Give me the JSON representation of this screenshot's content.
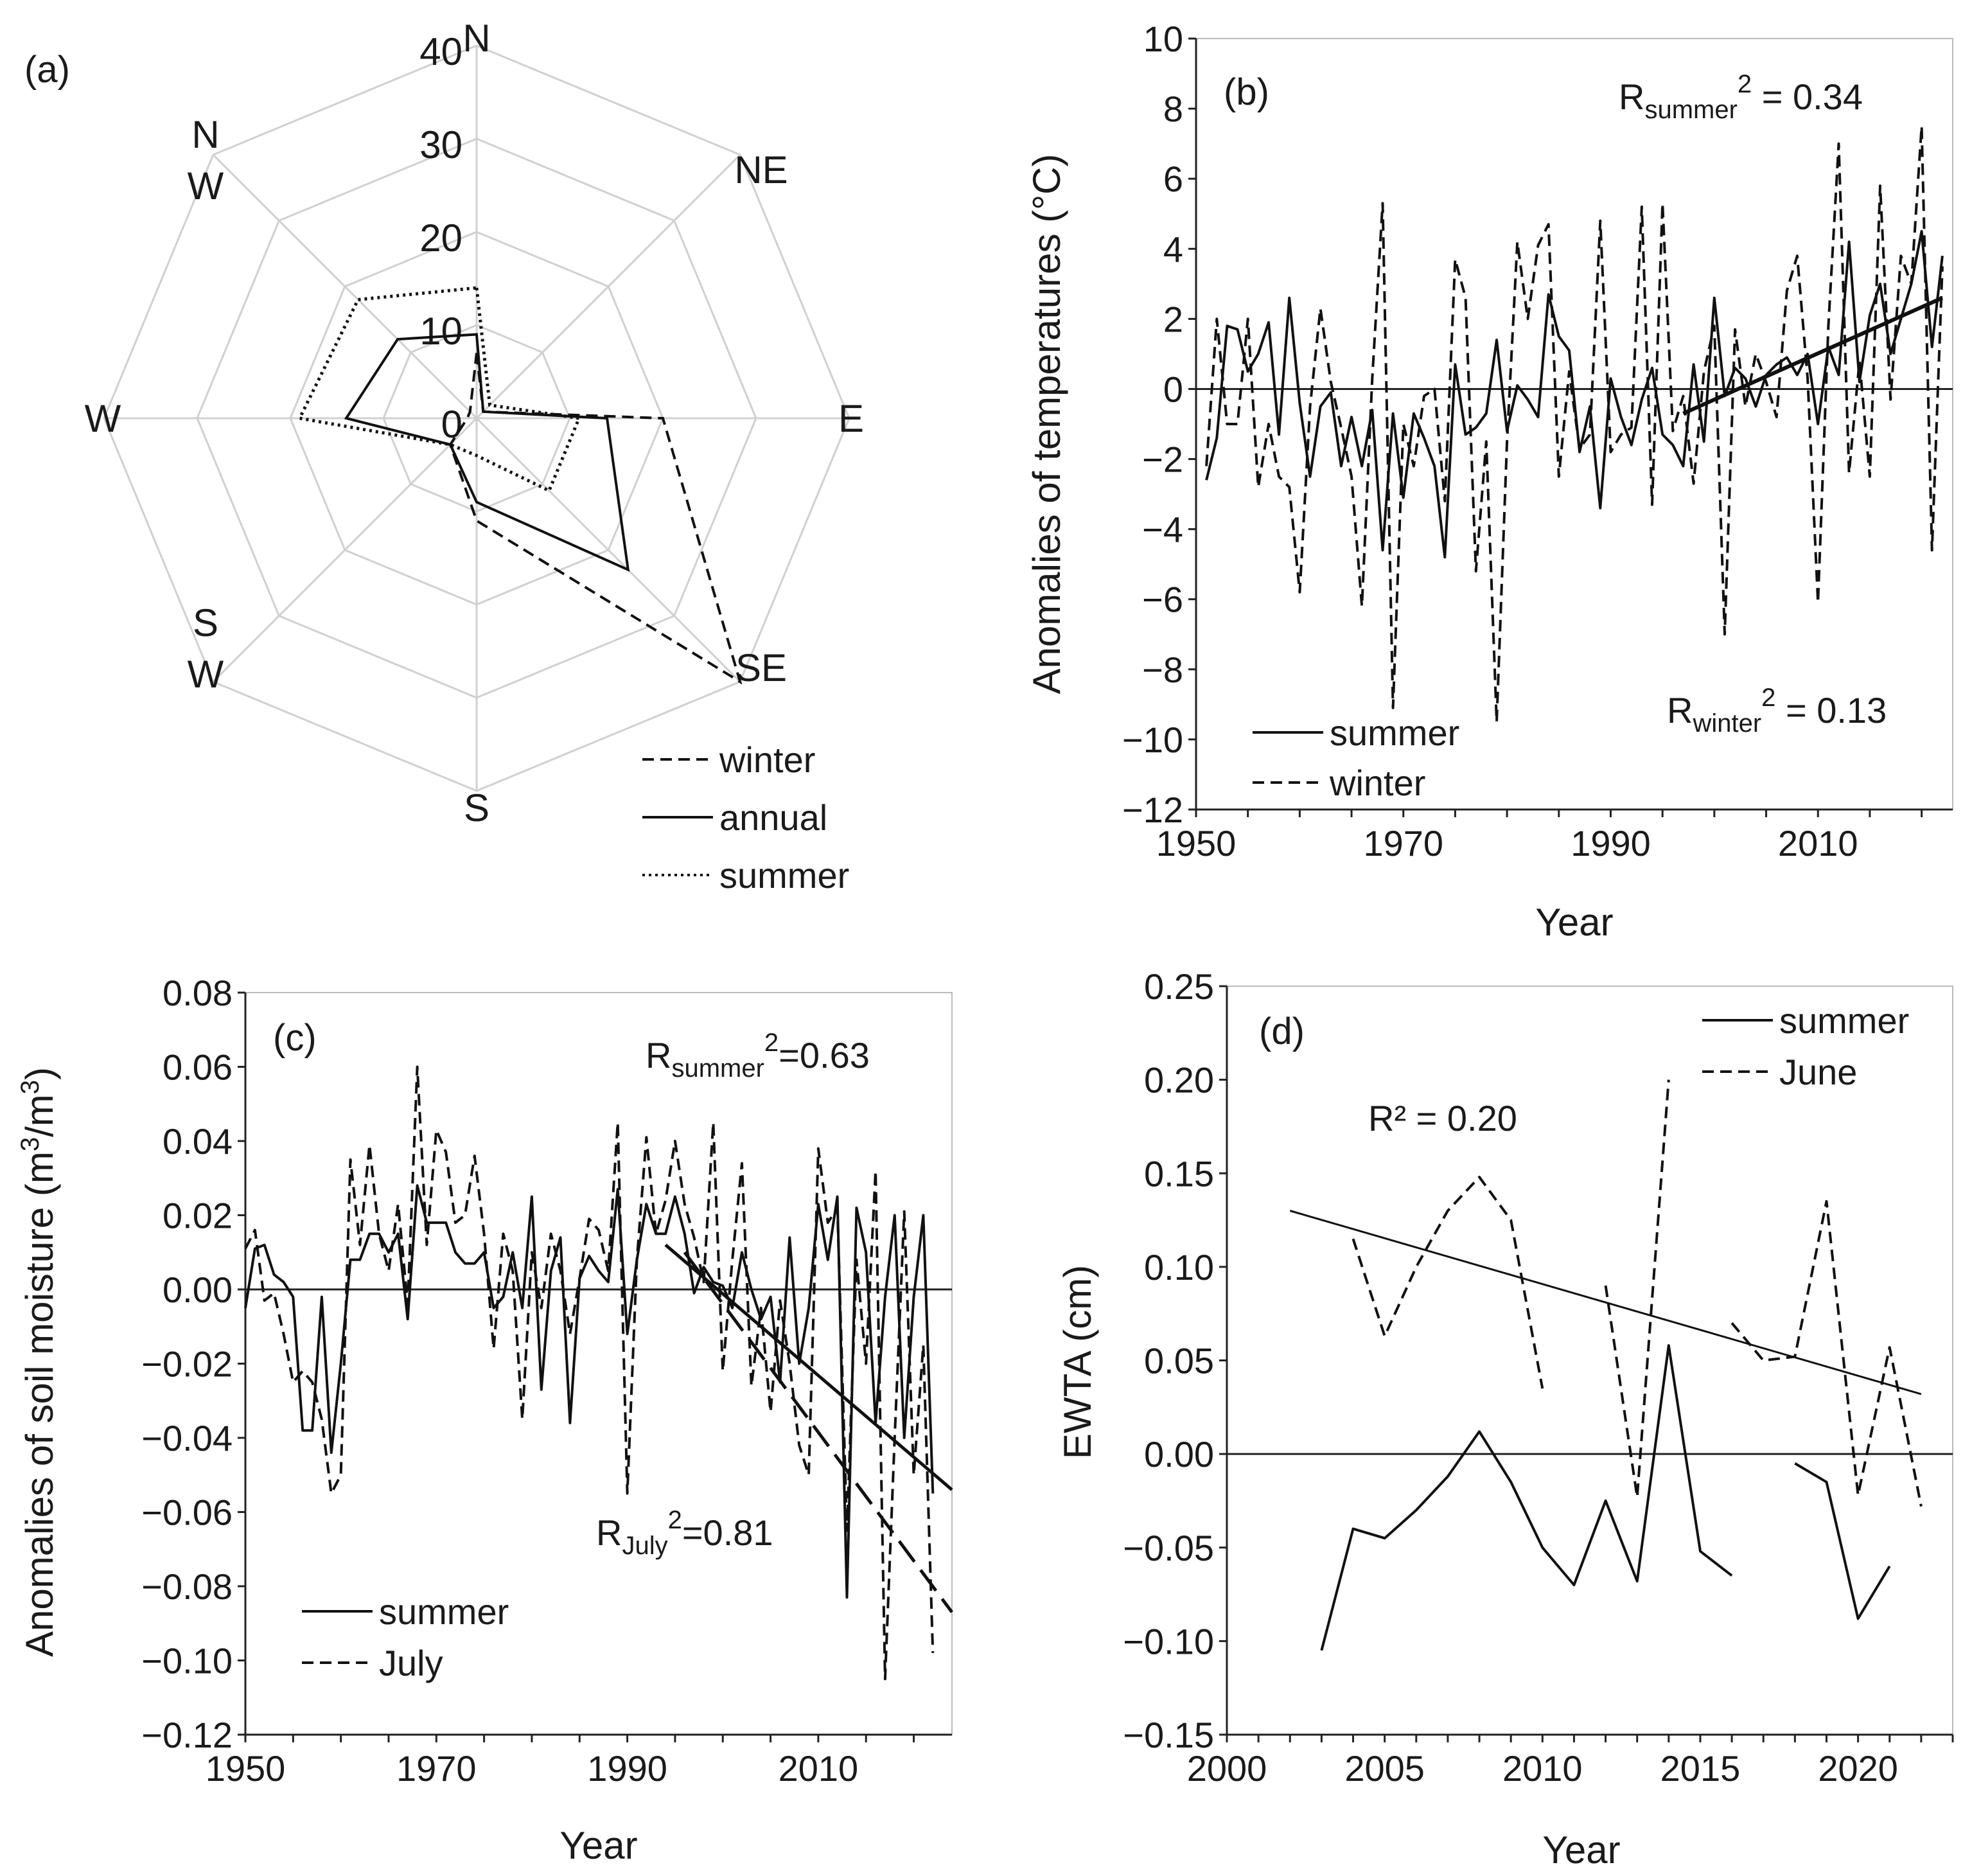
{
  "chart_data": [
    {
      "id": "a",
      "type": "radar",
      "panel_label": "(a)",
      "directions": [
        "N",
        "NE",
        "E",
        "SE",
        "S",
        "SW",
        "W",
        "NW"
      ],
      "direction_labels": [
        "N",
        "NE",
        "E",
        "SE",
        "S",
        "S\nW",
        "W",
        "N\nW"
      ],
      "radial_ticks": [
        "0",
        "10",
        "20",
        "30",
        "40"
      ],
      "rmax": 40,
      "series": [
        {
          "name": "winter",
          "style": "dashed",
          "values": [
            7,
            1,
            20,
            40,
            11,
            4,
            1,
            1
          ]
        },
        {
          "name": "annual",
          "style": "solid",
          "values": [
            9,
            1,
            14,
            23,
            9,
            4,
            14,
            12
          ]
        },
        {
          "name": "summer",
          "style": "dotted",
          "values": [
            14,
            2,
            11,
            11,
            4,
            4,
            19,
            18
          ]
        }
      ],
      "legend": [
        "winter",
        "annual",
        "summer"
      ]
    },
    {
      "id": "b",
      "type": "line",
      "panel_label": "(b)",
      "xlabel": "Year",
      "ylabel": "Anomalies of temperatures (°C)",
      "xlim": [
        1950,
        2023
      ],
      "ylim": [
        -12,
        10
      ],
      "xticks": [
        "1950",
        "1970",
        "1990",
        "2010"
      ],
      "yticks": [
        "−12",
        "−10",
        "−8",
        "−6",
        "−4",
        "−2",
        "0",
        "2",
        "4",
        "6",
        "8",
        "10"
      ],
      "annotations": {
        "r_summer_base": "R",
        "r_summer_sub": "summer",
        "r_summer_sup": "2",
        "r_summer_val": " = 0.34",
        "r_winter_base": "R",
        "r_winter_sub": "winter",
        "r_winter_sup": "2",
        "r_winter_val": " = 0.13"
      },
      "x": [
        1951,
        1952,
        1953,
        1954,
        1955,
        1956,
        1957,
        1958,
        1959,
        1960,
        1961,
        1962,
        1963,
        1964,
        1965,
        1966,
        1967,
        1968,
        1969,
        1970,
        1971,
        1972,
        1973,
        1974,
        1975,
        1976,
        1977,
        1978,
        1979,
        1980,
        1981,
        1982,
        1983,
        1984,
        1985,
        1986,
        1987,
        1988,
        1989,
        1990,
        1991,
        1992,
        1993,
        1994,
        1995,
        1996,
        1997,
        1998,
        1999,
        2000,
        2001,
        2002,
        2003,
        2004,
        2005,
        2006,
        2007,
        2008,
        2009,
        2010,
        2011,
        2012,
        2013,
        2014,
        2015,
        2016,
        2017,
        2018,
        2019,
        2020,
        2021,
        2022
      ],
      "series": [
        {
          "name": "summer",
          "style": "solid",
          "values": [
            -2.6,
            -1.4,
            1.8,
            1.7,
            0.5,
            1.0,
            1.9,
            -1.3,
            2.6,
            -0.4,
            -2.5,
            -0.5,
            -0.1,
            -2.2,
            -0.8,
            -2.2,
            -0.6,
            -4.6,
            -0.7,
            -3.1,
            -0.7,
            -1.4,
            -2.2,
            -4.8,
            0.7,
            -1.3,
            -1.1,
            -0.7,
            1.4,
            -1.2,
            0.1,
            -0.3,
            -0.8,
            2.7,
            1.5,
            1.1,
            -1.8,
            -0.5,
            -3.4,
            0.3,
            -0.8,
            -1.6,
            -0.3,
            0.6,
            -1.3,
            -1.6,
            -2.2,
            0.7,
            -1.5,
            2.6,
            -0.2,
            0.6,
            0.3,
            -0.5,
            0.4,
            0.7,
            0.9,
            0.4,
            1.0,
            -1.0,
            1.2,
            0.4,
            4.2,
            0.2,
            2.1,
            3.0,
            1.0,
            2.0,
            3.0,
            4.5,
            1.2,
            3.8
          ]
        },
        {
          "name": "winter",
          "style": "dashed",
          "values": [
            -2.2,
            2.0,
            -1.0,
            -1.0,
            2.0,
            -2.8,
            -1.0,
            -2.5,
            -2.8,
            -5.8,
            -0.5,
            2.3,
            0.2,
            -1.1,
            -2.5,
            -6.2,
            0.3,
            5.3,
            -9.1,
            -1.0,
            -2.2,
            -0.2,
            0.0,
            -3.2,
            3.7,
            2.6,
            -5.2,
            -1.5,
            -9.5,
            -1.5,
            4.2,
            2.0,
            4.1,
            4.7,
            -2.5,
            0.5,
            -1.7,
            -1.3,
            4.8,
            -1.8,
            -1.3,
            -1.1,
            5.2,
            -3.3,
            5.3,
            -1.2,
            -0.2,
            -2.7,
            0.5,
            1.8,
            -7.0,
            1.7,
            -0.5,
            1.0,
            0.2,
            -0.8,
            2.8,
            3.8,
            0.3,
            -6.1,
            1.8,
            7.0,
            -2.4,
            0.8,
            -2.5,
            5.8,
            -0.3,
            3.8,
            3.0,
            7.5,
            -4.6,
            3.5
          ]
        }
      ],
      "trend": {
        "style": "solid",
        "x": [
          1997,
          2022
        ],
        "y": [
          -0.7,
          2.6
        ]
      },
      "legend": [
        "summer",
        "winter"
      ]
    },
    {
      "id": "c",
      "type": "line",
      "panel_label": "(c)",
      "xlabel": "Year",
      "ylabel_base": "Anomalies of  soil moisture (m",
      "ylabel_sup1": "3",
      "ylabel_mid": "/m",
      "ylabel_sup2": "3",
      "ylabel_end": ")",
      "xlim": [
        1950,
        2024
      ],
      "ylim": [
        -0.12,
        0.08
      ],
      "xticks": [
        "1950",
        "1970",
        "1990",
        "2010"
      ],
      "yticks": [
        "−0.12",
        "−0.10",
        "−0.08",
        "−0.06",
        "−0.04",
        "−0.02",
        "0.00",
        "0.02",
        "0.04",
        "0.06",
        "0.08"
      ],
      "annotations": {
        "r_summer_base": "R",
        "r_summer_sub": "summer",
        "r_summer_sup": "2",
        "r_summer_val": "=0.63",
        "r_july_base": "R",
        "r_july_sub": "July",
        "r_july_sup": "2",
        "r_july_val": "=0.81"
      },
      "x": [
        1950,
        1951,
        1952,
        1953,
        1954,
        1955,
        1956,
        1957,
        1958,
        1959,
        1960,
        1961,
        1962,
        1963,
        1964,
        1965,
        1966,
        1967,
        1968,
        1969,
        1970,
        1971,
        1972,
        1973,
        1974,
        1975,
        1976,
        1977,
        1978,
        1979,
        1980,
        1981,
        1982,
        1983,
        1984,
        1985,
        1986,
        1987,
        1988,
        1989,
        1990,
        1991,
        1992,
        1993,
        1994,
        1995,
        1996,
        1997,
        1998,
        1999,
        2000,
        2001,
        2002,
        2003,
        2004,
        2005,
        2006,
        2007,
        2008,
        2009,
        2010,
        2011,
        2012,
        2013,
        2014,
        2015,
        2016,
        2017,
        2018,
        2019,
        2020,
        2021,
        2022
      ],
      "series": [
        {
          "name": "summer",
          "style": "solid",
          "values": [
            -0.005,
            0.011,
            0.012,
            0.004,
            0.002,
            -0.002,
            -0.038,
            -0.038,
            -0.002,
            -0.044,
            -0.02,
            0.008,
            0.008,
            0.015,
            0.015,
            0.01,
            0.015,
            -0.008,
            0.028,
            0.018,
            0.018,
            0.018,
            0.01,
            0.007,
            0.007,
            0.01,
            -0.005,
            -0.002,
            0.01,
            -0.005,
            0.025,
            -0.027,
            0.005,
            0.014,
            -0.036,
            0.003,
            0.009,
            0.005,
            0.002,
            0.027,
            -0.012,
            0.008,
            0.023,
            0.015,
            0.015,
            0.025,
            0.015,
            -0.001,
            0.006,
            0.002,
            0.001,
            -0.005,
            0.01,
            0.0,
            -0.008,
            -0.002,
            -0.025,
            0.014,
            -0.02,
            -0.005,
            0.023,
            0.008,
            0.025,
            -0.083,
            0.022,
            0.01,
            -0.036,
            -0.002,
            0.02,
            -0.04,
            -0.002,
            0.02,
            -0.055
          ]
        },
        {
          "name": "July",
          "style": "dashed",
          "values": [
            0.011,
            0.016,
            -0.003,
            -0.001,
            -0.012,
            -0.025,
            -0.022,
            -0.025,
            -0.035,
            -0.055,
            -0.05,
            0.035,
            0.012,
            0.039,
            0.015,
            0.005,
            0.023,
            -0.004,
            0.06,
            0.012,
            0.043,
            0.037,
            0.018,
            0.02,
            0.036,
            0.015,
            -0.016,
            0.015,
            0.005,
            -0.035,
            0.01,
            -0.005,
            0.015,
            0.005,
            -0.012,
            0.003,
            0.019,
            0.016,
            0.005,
            0.045,
            -0.055,
            0.008,
            0.041,
            0.015,
            0.024,
            0.04,
            0.023,
            0.014,
            0.002,
            0.045,
            -0.022,
            0.008,
            0.034,
            -0.026,
            -0.005,
            -0.033,
            -0.003,
            -0.02,
            -0.042,
            -0.05,
            0.038,
            0.018,
            0.022,
            -0.065,
            0.008,
            -0.02,
            0.032,
            -0.105,
            -0.04,
            0.021,
            -0.05,
            -0.015,
            -0.098
          ]
        }
      ],
      "trends": [
        {
          "name": "summer",
          "style": "solid",
          "x": [
            1994,
            2024
          ],
          "y": [
            0.012,
            -0.054
          ]
        },
        {
          "name": "July",
          "style": "longdash",
          "x": [
            1996,
            2024
          ],
          "y": [
            0.01,
            -0.087
          ]
        }
      ],
      "legend": [
        "summer",
        "July"
      ]
    },
    {
      "id": "d",
      "type": "line",
      "panel_label": "(d)",
      "xlabel": "Year",
      "ylabel": "EWTA  (cm)",
      "xlim": [
        2000,
        2023
      ],
      "ylim": [
        -0.15,
        0.25
      ],
      "xticks": [
        "2000",
        "2005",
        "2010",
        "2015",
        "2020"
      ],
      "yticks": [
        "−0.15",
        "−0.10",
        "−0.05",
        "0.00",
        "0.05",
        "0.10",
        "0.15",
        "0.20",
        "0.25"
      ],
      "annotations": {
        "r2": "R² = 0.20"
      },
      "series": [
        {
          "name": "summer",
          "style": "solid",
          "segments": [
            {
              "x": [
                2003,
                2004,
                2005,
                2006,
                2007,
                2008,
                2009,
                2010,
                2011,
                2012,
                2013,
                2014,
                2015,
                2016
              ],
              "y": [
                -0.105,
                -0.04,
                -0.045,
                -0.03,
                -0.012,
                0.012,
                -0.015,
                -0.05,
                -0.07,
                -0.025,
                -0.068,
                0.058,
                -0.052,
                -0.065
              ]
            },
            {
              "x": [
                2018,
                2019,
                2020,
                2021
              ],
              "y": [
                -0.005,
                -0.015,
                -0.088,
                -0.06
              ]
            }
          ]
        },
        {
          "name": "June",
          "style": "dashed",
          "segments": [
            {
              "x": [
                2004,
                2005,
                2006,
                2007,
                2008,
                2009,
                2010
              ],
              "y": [
                0.115,
                0.063,
                0.1,
                0.13,
                0.148,
                0.125,
                0.035
              ]
            },
            {
              "x": [
                2012,
                2013,
                2014
              ],
              "y": [
                0.09,
                -0.023,
                0.2
              ]
            },
            {
              "x": [
                2016,
                2017,
                2018,
                2019,
                2020,
                2021,
                2022
              ],
              "y": [
                0.07,
                0.05,
                0.052,
                0.135,
                -0.022,
                0.057,
                -0.028
              ]
            }
          ]
        }
      ],
      "trend": {
        "style": "thin-solid",
        "x": [
          2002,
          2022
        ],
        "y": [
          0.13,
          0.032
        ]
      },
      "legend": [
        "summer",
        "June"
      ]
    }
  ]
}
